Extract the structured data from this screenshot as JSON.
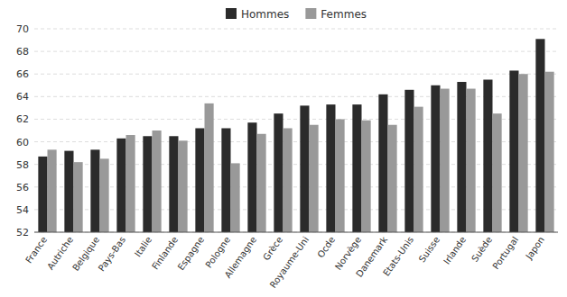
{
  "chart_data": {
    "type": "bar",
    "categories": [
      "France",
      "Autriche",
      "Belgique",
      "Pays-Bas",
      "Italie",
      "Finlande",
      "Espagne",
      "Pologne",
      "Allemagne",
      "Grèce",
      "Royaume-Uni",
      "Ocde",
      "Norvège",
      "Danemark",
      "Etats-Unis",
      "Suisse",
      "Irlande",
      "Suède",
      "Portugal",
      "Japon"
    ],
    "series": [
      {
        "name": "Hommes",
        "color": "#2b2b2b",
        "values": [
          58.7,
          59.2,
          59.3,
          60.3,
          60.5,
          60.5,
          61.2,
          61.2,
          61.7,
          62.5,
          63.2,
          63.3,
          63.3,
          64.2,
          64.6,
          65.0,
          65.3,
          65.5,
          66.3,
          69.1
        ]
      },
      {
        "name": "Femmes",
        "color": "#999999",
        "values": [
          59.3,
          58.2,
          58.5,
          60.6,
          61.0,
          60.1,
          63.4,
          58.1,
          60.7,
          61.2,
          61.5,
          62.0,
          61.9,
          61.5,
          63.1,
          64.7,
          64.7,
          62.5,
          66.0,
          66.2
        ]
      }
    ],
    "ylim": [
      52,
      70
    ],
    "yticks": [
      52,
      54,
      56,
      58,
      60,
      62,
      64,
      66,
      68,
      70
    ],
    "grid": true,
    "legend": "upper center"
  }
}
